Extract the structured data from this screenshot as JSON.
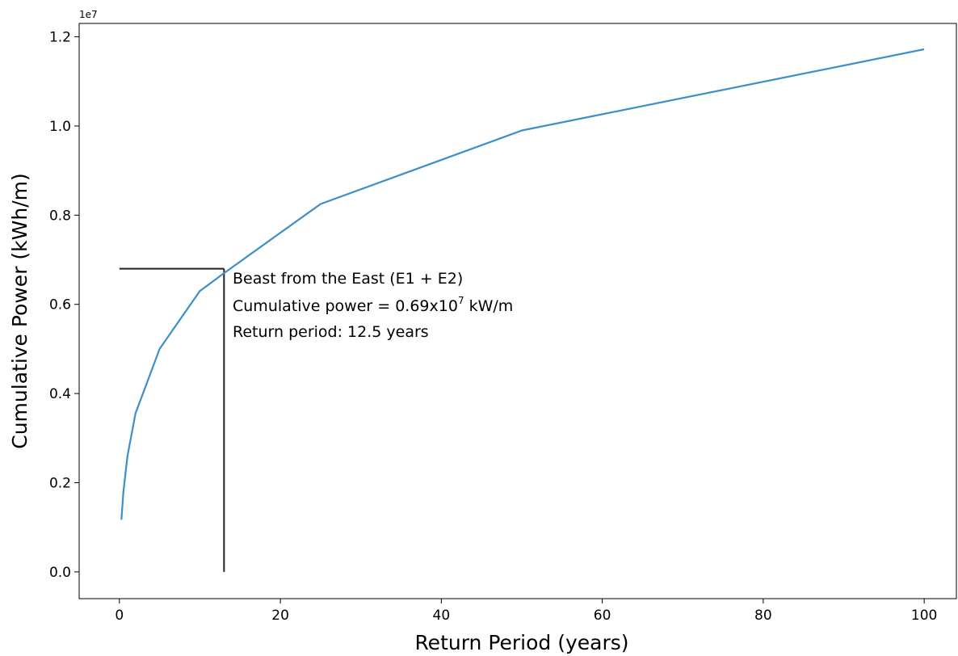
{
  "chart_data": {
    "type": "line",
    "title": "",
    "xlabel": "Return Period (years)",
    "ylabel": "Cumulative Power (kWh/m)",
    "y_offset_label": "1e7",
    "xlim": [
      -5,
      104
    ],
    "ylim": [
      -0.06,
      1.23
    ],
    "y_scale_factor": 10000000,
    "x_ticks": [
      0,
      20,
      40,
      60,
      80,
      100
    ],
    "x_tick_labels": [
      "0",
      "20",
      "40",
      "60",
      "80",
      "100"
    ],
    "y_ticks": [
      0.0,
      0.2,
      0.4,
      0.6,
      0.8,
      1.0,
      1.2
    ],
    "y_tick_labels": [
      "0.0",
      "0.2",
      "0.4",
      "0.6",
      "0.8",
      "1.0",
      "1.2"
    ],
    "grid": false,
    "color": "#3d8ec9",
    "series": [
      {
        "x": [
          0.25,
          0.5,
          1,
          2,
          5,
          10,
          13,
          25,
          50,
          100
        ],
        "y": [
          0.117,
          0.18,
          0.26,
          0.355,
          0.5,
          0.63,
          0.67,
          0.825,
          0.99,
          1.172
        ]
      }
    ],
    "reference_lines": {
      "color": "#222222",
      "x": 13,
      "y": 0.68
    },
    "annotation": {
      "line1": "Beast from the East (E1 + E2)",
      "line2_prefix": "Cumulative power = 0.69x10",
      "line2_sup": "7",
      "line2_suffix": " kW/m",
      "line3": "Return period: 12.5 years"
    }
  }
}
